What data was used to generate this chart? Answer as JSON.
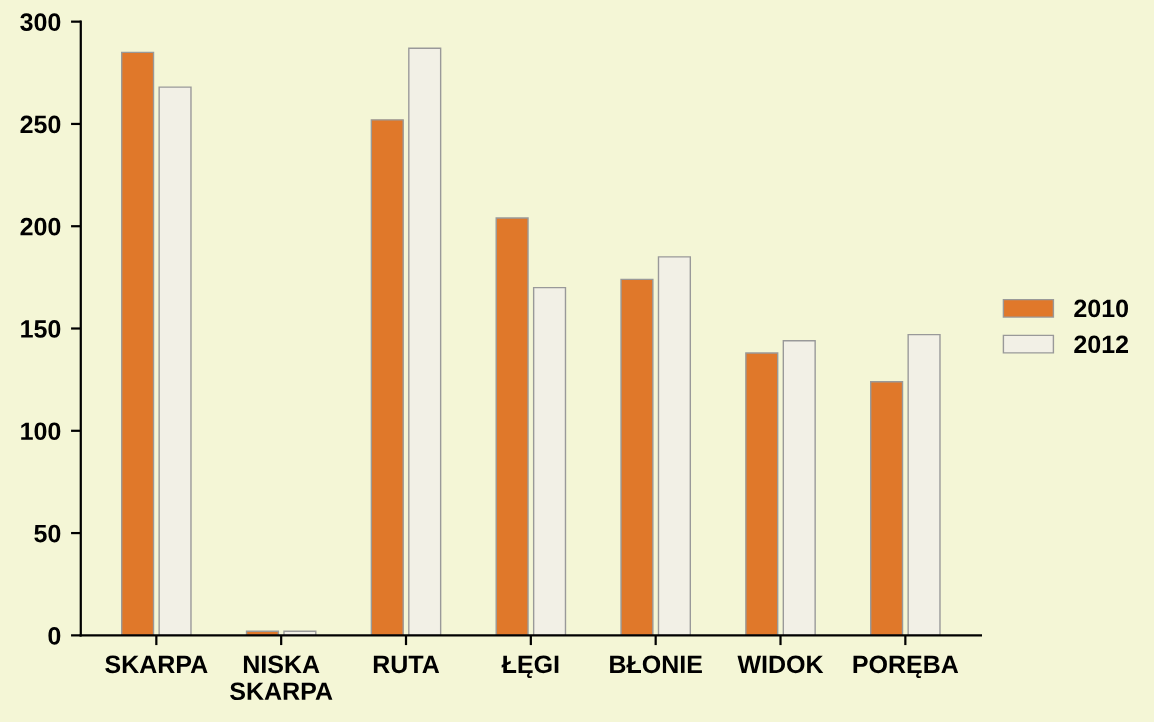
{
  "chart_data": {
    "type": "bar",
    "categories": [
      "SKARPA",
      "NISKA\nSKARPA",
      "RUTA",
      "ŁĘGI",
      "BŁONIE",
      "WIDOK",
      "PORĘBA"
    ],
    "series": [
      {
        "name": "2010",
        "color": "#e0782a",
        "values": [
          285,
          2,
          252,
          204,
          174,
          138,
          124
        ]
      },
      {
        "name": "2012",
        "color": "#f2f0e6",
        "values": [
          268,
          2,
          287,
          170,
          185,
          144,
          147
        ]
      }
    ],
    "ylim": [
      0,
      300
    ],
    "yticks": [
      0,
      50,
      100,
      150,
      200,
      250,
      300
    ],
    "grid": false,
    "legend": "right"
  }
}
